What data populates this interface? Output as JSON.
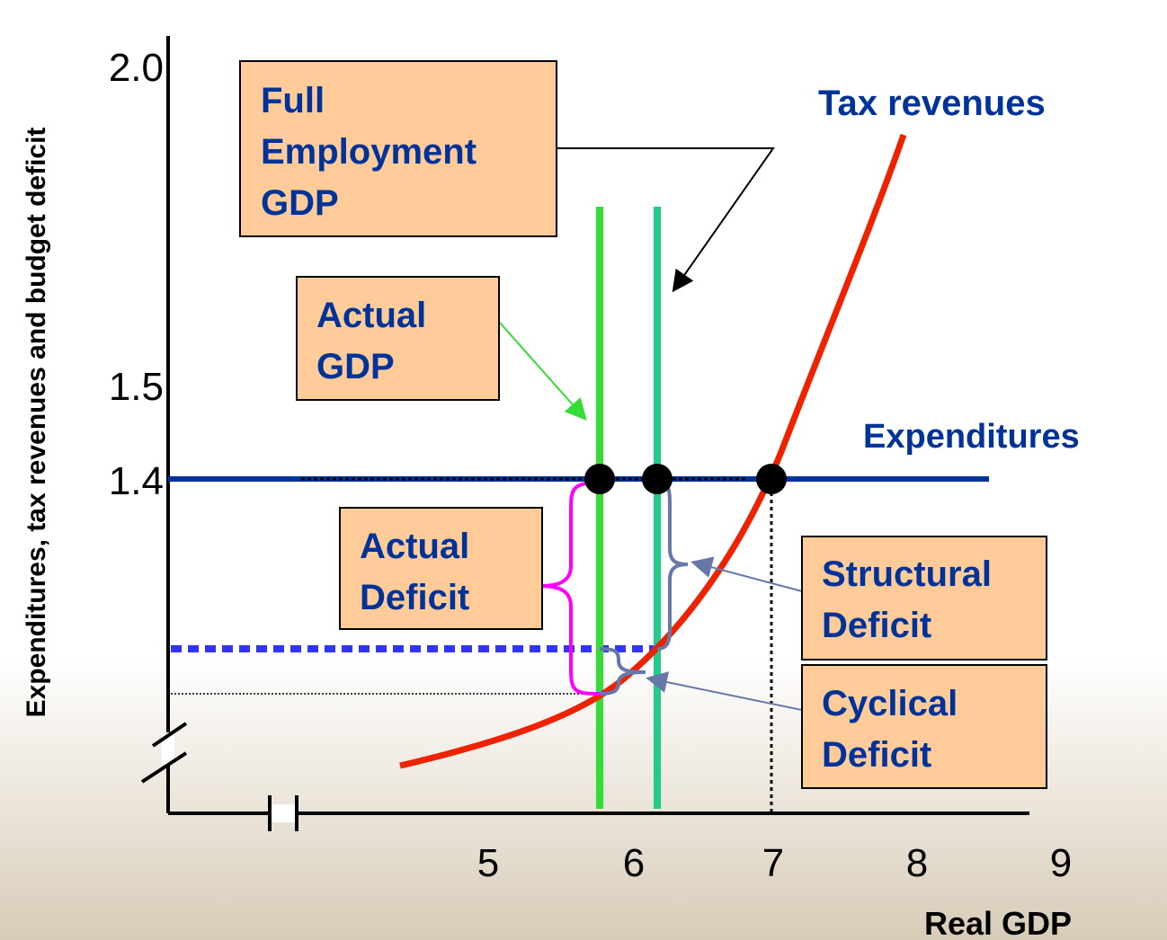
{
  "y_axis": {
    "title": "Expenditures, tax revenues and budget deficit",
    "ticks": [
      "2.0",
      "1.5",
      "1.4"
    ]
  },
  "x_axis": {
    "title": "Real GDP",
    "ticks": [
      "5",
      "6",
      "7",
      "8",
      "9"
    ]
  },
  "curves": {
    "tax_revenues": "Tax revenues",
    "expenditures": "Expenditures"
  },
  "boxes": {
    "full_employment": [
      "Full",
      "Employment",
      "GDP"
    ],
    "actual_gdp": [
      "Actual",
      "GDP"
    ],
    "actual_deficit": [
      "Actual",
      "Deficit"
    ],
    "structural_deficit": [
      "Structural",
      "Deficit"
    ],
    "cyclical_deficit": [
      "Cyclical",
      "Deficit"
    ]
  }
}
